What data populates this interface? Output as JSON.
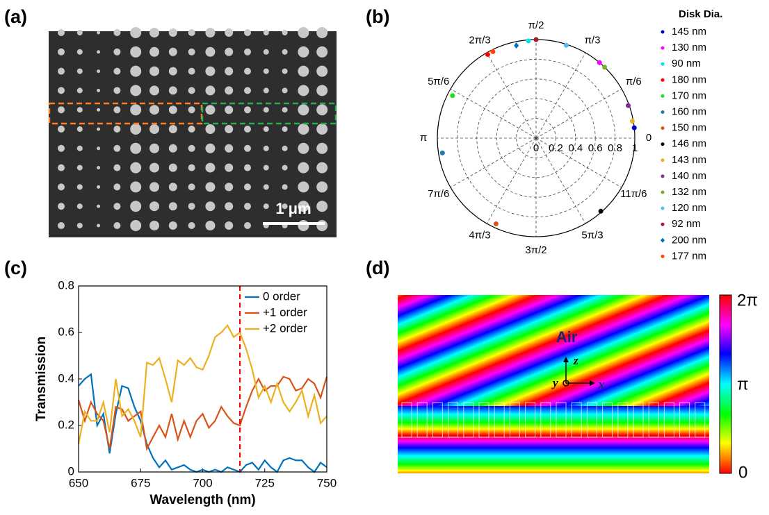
{
  "panels": [
    "(a)",
    "(b)",
    "(c)",
    "(d)"
  ],
  "sem_image": {
    "scale_bar": "1 μm"
  },
  "phase_map": {
    "label": "Air",
    "axes": [
      "z",
      "y",
      "x"
    ],
    "colorbar_labels": [
      "2π",
      "π",
      "0"
    ]
  },
  "chart_data": [
    {
      "type": "polar",
      "legend_title": "Disk Dia.",
      "categories": [
        "145 nm",
        "130 nm",
        "90 nm",
        "180 nm",
        "170 nm",
        "160 nm",
        "150 nm",
        "146 nm",
        "143 nm",
        "140 nm",
        "132 nm",
        "120 nm",
        "92 nm",
        "200 nm",
        "177 nm"
      ],
      "colors": [
        "#0000cc",
        "#ff00ff",
        "#00e5ee",
        "#ff0000",
        "#22dd22",
        "#1f77b4",
        "#d95319",
        "#000000",
        "#edb120",
        "#7e2f8e",
        "#77ac30",
        "#4dbeee",
        "#a2142f",
        "#0072bd",
        "#ff4500"
      ],
      "markers": [
        "o",
        "o",
        "o",
        "o",
        "o",
        "o",
        "o",
        "o",
        "o",
        "o",
        "o",
        "o",
        "o",
        "d",
        "o"
      ],
      "r": [
        1.0,
        1.0,
        0.99,
        0.98,
        0.95,
        0.96,
        0.96,
        0.99,
        0.99,
        0.99,
        1.0,
        0.99,
        1.0,
        0.96,
        0.98
      ],
      "theta": [
        6,
        50,
        94.5,
        120,
        153,
        189,
        245,
        311.5,
        10,
        19.5,
        46,
        72,
        90,
        102,
        116.5
      ],
      "rlim": [
        0,
        1
      ],
      "rticks": [
        0,
        0.2,
        0.4,
        0.6,
        0.8,
        1
      ],
      "thetaticks": [
        {
          "value": 0,
          "label": "0"
        },
        {
          "value": 30,
          "label": "π/6"
        },
        {
          "value": 60,
          "label": "π/3"
        },
        {
          "value": 90,
          "label": "π/2"
        },
        {
          "value": 120,
          "label": "2π/3"
        },
        {
          "value": 150,
          "label": "5π/6"
        },
        {
          "value": 180,
          "label": "π"
        },
        {
          "value": 210,
          "label": "7π/6"
        },
        {
          "value": 240,
          "label": "4π/3"
        },
        {
          "value": 270,
          "label": "3π/2"
        },
        {
          "value": 300,
          "label": "5π/3"
        },
        {
          "value": 330,
          "label": "11π/6"
        }
      ]
    },
    {
      "type": "line",
      "x_label": "Wavelength (nm)",
      "y_label": "Transmission",
      "x": [
        650,
        652.5,
        655,
        657.5,
        660,
        662.5,
        665,
        667.5,
        670,
        672.5,
        675,
        677.5,
        680,
        682.5,
        685,
        687.5,
        690,
        692.5,
        695,
        697.5,
        700,
        702.5,
        705,
        707.5,
        710,
        712.5,
        715,
        717.5,
        720,
        722.5,
        725,
        727.5,
        730,
        732.5,
        735,
        737.5,
        740,
        742.5,
        745,
        747.5,
        750
      ],
      "series": [
        {
          "name": "0 order",
          "color": "#0072bd",
          "values": [
            0.37,
            0.4,
            0.42,
            0.2,
            0.25,
            0.08,
            0.25,
            0.37,
            0.36,
            0.28,
            0.22,
            0.12,
            0.06,
            0.02,
            0.05,
            0.01,
            0.02,
            0.03,
            0.01,
            0.0,
            0.01,
            0.0,
            0.01,
            0.0,
            0.02,
            0.01,
            0.0,
            0.03,
            0.04,
            0.01,
            0.05,
            0.02,
            0.0,
            0.05,
            0.06,
            0.05,
            0.05,
            0.02,
            0.0,
            0.04,
            0.02
          ]
        },
        {
          "name": "+1 order",
          "color": "#d95319",
          "values": [
            0.31,
            0.22,
            0.3,
            0.25,
            0.22,
            0.1,
            0.28,
            0.27,
            0.22,
            0.24,
            0.26,
            0.1,
            0.15,
            0.2,
            0.15,
            0.25,
            0.14,
            0.22,
            0.15,
            0.22,
            0.25,
            0.19,
            0.22,
            0.28,
            0.24,
            0.21,
            0.2,
            0.28,
            0.35,
            0.4,
            0.35,
            0.37,
            0.37,
            0.41,
            0.4,
            0.35,
            0.36,
            0.4,
            0.38,
            0.32,
            0.41
          ]
        },
        {
          "name": "+2 order",
          "color": "#edb120",
          "values": [
            0.12,
            0.26,
            0.22,
            0.22,
            0.3,
            0.17,
            0.4,
            0.24,
            0.27,
            0.22,
            0.15,
            0.47,
            0.46,
            0.49,
            0.4,
            0.3,
            0.48,
            0.46,
            0.49,
            0.45,
            0.44,
            0.5,
            0.58,
            0.6,
            0.63,
            0.58,
            0.6,
            0.53,
            0.44,
            0.32,
            0.37,
            0.3,
            0.38,
            0.3,
            0.26,
            0.3,
            0.35,
            0.24,
            0.33,
            0.21,
            0.24
          ]
        }
      ],
      "vline": 715,
      "vline_color": "#ff0000",
      "xlim": [
        650,
        750
      ],
      "xticks": [
        650,
        675,
        700,
        725,
        750
      ],
      "ylim": [
        0,
        0.8
      ],
      "yticks": [
        0,
        0.2,
        0.4,
        0.6,
        0.8
      ]
    }
  ]
}
